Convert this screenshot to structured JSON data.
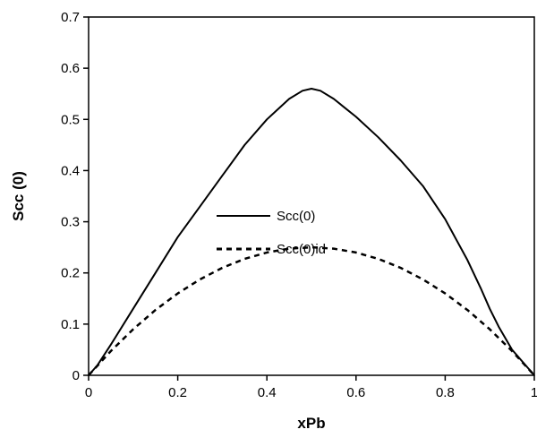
{
  "chart_data": {
    "type": "line",
    "title": "",
    "xlabel": "xPb",
    "ylabel": "Scc (0)",
    "xlim": [
      0,
      1
    ],
    "ylim": [
      0,
      0.7
    ],
    "xticks": [
      0,
      0.2,
      0.4,
      0.6,
      0.8,
      1
    ],
    "xtick_labels": [
      "0",
      "0.2",
      "0.4",
      "0.6",
      "0.8",
      "1"
    ],
    "yticks": [
      0,
      0.1,
      0.2,
      0.3,
      0.4,
      0.5,
      0.6,
      0.7
    ],
    "ytick_labels": [
      "0",
      "0.1",
      "0.2",
      "0.3",
      "0.4",
      "0.5",
      "0.6",
      "0.7"
    ],
    "grid": false,
    "legend_position": "center-left inside plot",
    "series": [
      {
        "name": "Scc(0)",
        "style": "solid",
        "color": "#000000",
        "x": [
          0,
          0.02,
          0.05,
          0.1,
          0.15,
          0.2,
          0.25,
          0.3,
          0.35,
          0.4,
          0.45,
          0.48,
          0.5,
          0.52,
          0.55,
          0.6,
          0.65,
          0.7,
          0.75,
          0.8,
          0.85,
          0.88,
          0.9,
          0.92,
          0.95,
          1.0
        ],
        "y": [
          0,
          0.02,
          0.06,
          0.13,
          0.2,
          0.27,
          0.33,
          0.39,
          0.45,
          0.5,
          0.54,
          0.556,
          0.56,
          0.556,
          0.54,
          0.505,
          0.465,
          0.42,
          0.37,
          0.305,
          0.225,
          0.17,
          0.13,
          0.095,
          0.05,
          0.0
        ]
      },
      {
        "name": "Scc(0)id",
        "style": "dashed",
        "color": "#000000",
        "x": [
          0,
          0.05,
          0.1,
          0.15,
          0.2,
          0.25,
          0.3,
          0.35,
          0.4,
          0.45,
          0.5,
          0.55,
          0.6,
          0.65,
          0.7,
          0.75,
          0.8,
          0.85,
          0.9,
          0.95,
          1.0
        ],
        "y": [
          0,
          0.0475,
          0.09,
          0.1275,
          0.16,
          0.1875,
          0.21,
          0.2275,
          0.24,
          0.2475,
          0.25,
          0.2475,
          0.24,
          0.2275,
          0.21,
          0.1875,
          0.16,
          0.1275,
          0.09,
          0.0475,
          0.0
        ]
      }
    ]
  }
}
